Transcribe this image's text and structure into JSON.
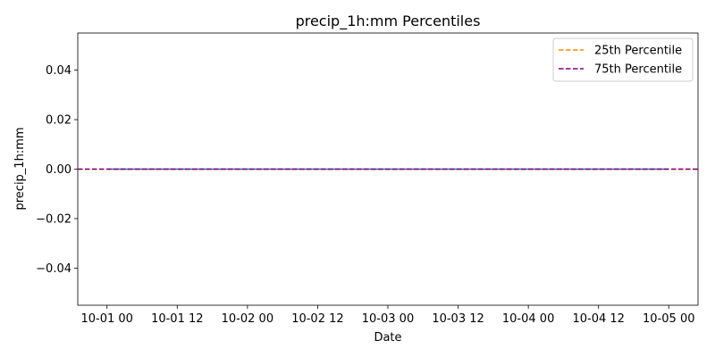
{
  "chart_data": {
    "type": "line",
    "title": "precip_1h:mm Percentiles",
    "xlabel": "Date",
    "ylabel": "precip_1h:mm",
    "x_ticks": [
      "10-01 00",
      "10-01 12",
      "10-02 00",
      "10-02 12",
      "10-03 00",
      "10-03 12",
      "10-04 00",
      "10-04 12",
      "10-05 00"
    ],
    "x_range": [
      "2023-09-30T19:00",
      "2023-10-05T05:00"
    ],
    "ylim": [
      -0.055,
      0.055
    ],
    "y_ticks": [
      -0.04,
      -0.02,
      0.0,
      0.02,
      0.04
    ],
    "y_tick_labels": [
      "−0.04",
      "−0.02",
      "0.00",
      "0.02",
      "0.04"
    ],
    "grid": false,
    "legend_position": "top-right",
    "series": [
      {
        "color": "#1f77b4",
        "style": "solid",
        "x": [
          "2023-10-01T00:00",
          "2023-10-05T00:00"
        ],
        "values": [
          0,
          0
        ]
      },
      {
        "name": "25th Percentile",
        "color": "#ff8c00",
        "style": "dashed",
        "value": 0
      },
      {
        "name": "75th Percentile",
        "color": "#800080",
        "style": "dashed",
        "value": 0
      }
    ]
  }
}
